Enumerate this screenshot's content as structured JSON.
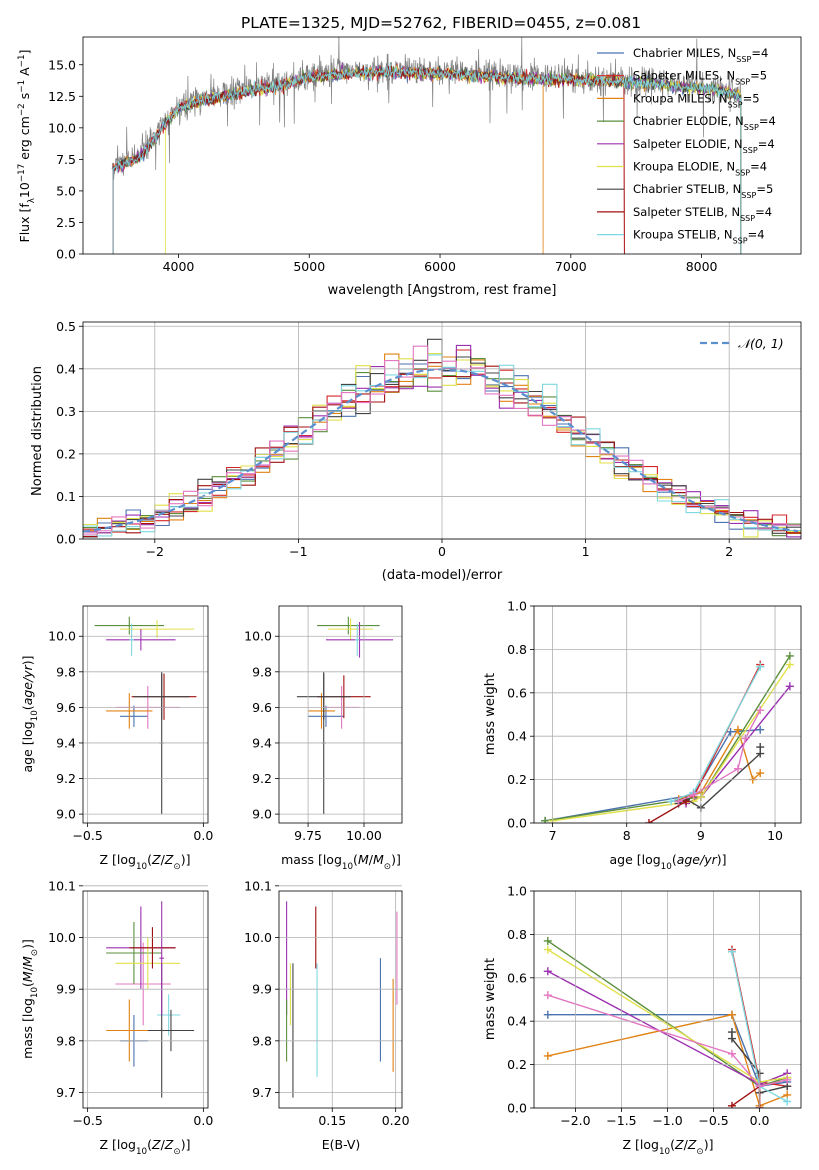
{
  "figure_title": "PLATE=1325, MJD=52762, FIBERID=0455, z=0.081",
  "legend_models": [
    {
      "label": "Chabrier MILES, N",
      "sub": "SSP",
      "suffix": "=4",
      "color": "#4c72b0"
    },
    {
      "label": "Salpeter MILES, N",
      "sub": "SSP",
      "suffix": "=5",
      "color": "#d62728"
    },
    {
      "label": "Kroupa MILES, N",
      "sub": "SSP",
      "suffix": "=5",
      "color": "#e08214"
    },
    {
      "label": "Chabrier ELODIE, N",
      "sub": "SSP",
      "suffix": "=4",
      "color": "#5a8f3c"
    },
    {
      "label": "Salpeter ELODIE, N",
      "sub": "SSP",
      "suffix": "=4",
      "color": "#9b30b0"
    },
    {
      "label": "Kroupa ELODIE, N",
      "sub": "SSP",
      "suffix": "=4",
      "color": "#e0e04a"
    },
    {
      "label": "Chabrier STELIB, N",
      "sub": "SSP",
      "suffix": "=5",
      "color": "#444444"
    },
    {
      "label": "Salpeter STELIB, N",
      "sub": "SSP",
      "suffix": "=4",
      "color": "#a01010"
    },
    {
      "label": "Kroupa STELIB, N",
      "sub": "SSP",
      "suffix": "=4",
      "color": "#7fd8e0"
    }
  ],
  "chart_data": [
    {
      "id": "spectrum",
      "type": "line",
      "title": "PLATE=1325, MJD=52762, FIBERID=0455, z=0.081",
      "xlabel": "wavelength [Angstrom, rest frame]",
      "ylabel_parts": [
        "Flux [f",
        "λ",
        "10",
        "−17",
        " erg cm",
        "−2",
        " s",
        "−1",
        " A",
        "−1",
        "]"
      ],
      "xlim": [
        3270,
        8760
      ],
      "ylim": [
        0,
        17.2
      ],
      "xticks": [
        4000,
        5000,
        6000,
        7000,
        8000
      ],
      "yticks": [
        0.0,
        2.5,
        5.0,
        7.5,
        10.0,
        12.5,
        15.0
      ],
      "grid": false,
      "data_color": "#808080",
      "model_colors": [
        "#4c72b0",
        "#d62728",
        "#e08214",
        "#5a8f3c",
        "#9b30b0",
        "#e0e04a",
        "#444444",
        "#a01010",
        "#7fd8e0"
      ],
      "continuum": {
        "x": [
          3500,
          3700,
          3900,
          4000,
          4200,
          4500,
          4800,
          5000,
          5300,
          5600,
          6000,
          6300,
          6600,
          7000,
          7300,
          7600,
          7900,
          8200,
          8300
        ],
        "y": [
          7.0,
          7.8,
          10.5,
          11.8,
          12.4,
          13.0,
          13.6,
          14.2,
          14.5,
          14.6,
          14.5,
          14.3,
          14.1,
          14.0,
          13.9,
          13.7,
          13.4,
          13.1,
          12.7
        ]
      },
      "model_start_x": [
        3500,
        3500,
        3500,
        3500,
        3500,
        3900,
        3500,
        3500,
        3500
      ],
      "model_end_x": [
        8300,
        7410,
        8300,
        8300,
        8300,
        8300,
        8300,
        7410,
        8300
      ],
      "drop_to_zero_x": [
        3500,
        3920,
        6790,
        7410
      ]
    },
    {
      "id": "residuals",
      "type": "histogram",
      "xlabel": "(data-model)/error",
      "ylabel": "Normed distribution",
      "xlim": [
        -2.5,
        2.5
      ],
      "ylim": [
        0,
        0.51
      ],
      "xticks": [
        -2,
        -1,
        0,
        1,
        2
      ],
      "yticks": [
        0.0,
        0.1,
        0.2,
        0.3,
        0.4,
        0.5
      ],
      "grid": true,
      "bin_width": 0.1,
      "legend": {
        "label": "𝒩(0, 1)",
        "color": "#5b8fd0",
        "style": "dashed",
        "position": "top-right"
      },
      "series_colors": [
        "#4c72b0",
        "#d62728",
        "#e08214",
        "#5a8f3c",
        "#9b30b0",
        "#e0e04a",
        "#444444",
        "#a01010",
        "#7fd8e0",
        "#e377c2"
      ]
    },
    {
      "id": "age-vs-Z",
      "type": "errorbar",
      "xlabel": "Z [log",
      "ylabel": "age  [log",
      "xlim": [
        -0.52,
        0.02
      ],
      "ylim": [
        8.95,
        10.17
      ],
      "xticks": [
        -0.5,
        0.0
      ],
      "yticks": [
        9.0,
        9.2,
        9.4,
        9.6,
        9.8,
        10.0
      ],
      "points": [
        {
          "x": -0.3,
          "xerr": 0.06,
          "y": 9.55,
          "yerr": 0.06,
          "color": "#4c72b0"
        },
        {
          "x": -0.24,
          "xerr": 0.14,
          "y": 9.6,
          "yerr": 0.12,
          "color": "#e377c2"
        },
        {
          "x": -0.32,
          "xerr": 0.1,
          "y": 9.58,
          "yerr": 0.1,
          "color": "#e08214"
        },
        {
          "x": -0.17,
          "xerr": 0.14,
          "y": 9.66,
          "yerr": 0.13,
          "color": "#a01010"
        },
        {
          "x": -0.18,
          "xerr": 0.12,
          "y": 9.66,
          "yerr": 0.13,
          "color": "#444444"
        },
        {
          "x": -0.32,
          "xerr": 0.15,
          "y": 10.06,
          "yerr": 0.05,
          "color": "#5a8f3c"
        },
        {
          "x": -0.2,
          "xerr": 0.16,
          "y": 10.04,
          "yerr": 0.05,
          "color": "#e0e04a"
        },
        {
          "x": -0.27,
          "xerr": 0.15,
          "y": 9.98,
          "yerr": 0.06,
          "color": "#9b30b0"
        },
        {
          "x": -0.18,
          "xerr": 0.01,
          "y": 9.4,
          "yerr": 0.4,
          "color": "#444444"
        },
        {
          "x": -0.31,
          "xerr": 0.01,
          "y": 9.98,
          "yerr": 0.09,
          "color": "#7fd8e0"
        }
      ]
    },
    {
      "id": "age-vs-mass",
      "type": "errorbar",
      "xlabel": "mass [log",
      "ylabel": "",
      "xlim": [
        9.62,
        10.17
      ],
      "ylim": [
        8.95,
        10.17
      ],
      "xticks": [
        9.75,
        10.0
      ],
      "points": [
        {
          "x": 9.83,
          "xerr": 0.08,
          "y": 9.55,
          "yerr": 0.06,
          "color": "#4c72b0"
        },
        {
          "x": 9.9,
          "xerr": 0.08,
          "y": 9.6,
          "yerr": 0.12,
          "color": "#e377c2"
        },
        {
          "x": 9.81,
          "xerr": 0.06,
          "y": 9.58,
          "yerr": 0.1,
          "color": "#e08214"
        },
        {
          "x": 9.91,
          "xerr": 0.12,
          "y": 9.66,
          "yerr": 0.12,
          "color": "#a01010"
        },
        {
          "x": 9.82,
          "xerr": 0.12,
          "y": 9.66,
          "yerr": 0.13,
          "color": "#444444"
        },
        {
          "x": 9.93,
          "xerr": 0.14,
          "y": 10.06,
          "yerr": 0.05,
          "color": "#5a8f3c"
        },
        {
          "x": 9.94,
          "xerr": 0.1,
          "y": 10.04,
          "yerr": 0.06,
          "color": "#e0e04a"
        },
        {
          "x": 9.98,
          "xerr": 0.15,
          "y": 9.98,
          "yerr": 0.1,
          "color": "#9b30b0"
        },
        {
          "x": 9.82,
          "xerr": 0.01,
          "y": 9.4,
          "yerr": 0.4,
          "color": "#444444"
        },
        {
          "x": 9.97,
          "xerr": 0.01,
          "y": 9.98,
          "yerr": 0.09,
          "color": "#7fd8e0"
        }
      ]
    },
    {
      "id": "weight-vs-age",
      "type": "line",
      "xlabel": "age  [log",
      "ylabel": "mass weight",
      "xlim": [
        6.75,
        10.35
      ],
      "ylim": [
        0,
        1.0
      ],
      "xticks": [
        7,
        8,
        9,
        10
      ],
      "yticks": [
        0.0,
        0.2,
        0.4,
        0.6,
        0.8,
        1.0
      ],
      "grid": true,
      "series": [
        {
          "color": "#4c72b0",
          "x": [
            6.9,
            8.9,
            9.4,
            9.8
          ],
          "y": [
            0.01,
            0.13,
            0.42,
            0.43
          ]
        },
        {
          "color": "#d62728",
          "x": [
            8.9,
            9.8
          ],
          "y": [
            0.12,
            0.73
          ]
        },
        {
          "color": "#e08214",
          "x": [
            8.7,
            9.0,
            9.5,
            9.7,
            9.8
          ],
          "y": [
            0.11,
            0.14,
            0.43,
            0.2,
            0.23
          ]
        },
        {
          "color": "#5a8f3c",
          "x": [
            6.9,
            8.8,
            9.0,
            10.2
          ],
          "y": [
            0.01,
            0.11,
            0.12,
            0.77
          ]
        },
        {
          "color": "#9b30b0",
          "x": [
            8.8,
            9.0,
            10.2
          ],
          "y": [
            0.09,
            0.12,
            0.63
          ]
        },
        {
          "color": "#e0e04a",
          "x": [
            7.0,
            8.9,
            9.0,
            10.2
          ],
          "y": [
            0.01,
            0.1,
            0.12,
            0.73
          ]
        },
        {
          "color": "#444444",
          "x": [
            8.7,
            8.8,
            9.0,
            9.8,
            9.8
          ],
          "y": [
            0.09,
            0.11,
            0.07,
            0.32,
            0.35
          ]
        },
        {
          "color": "#a01010",
          "x": [
            8.3,
            8.8
          ],
          "y": [
            0.0,
            0.1
          ]
        },
        {
          "color": "#7fd8e0",
          "x": [
            8.6,
            8.9,
            9.8
          ],
          "y": [
            0.1,
            0.14,
            0.72
          ]
        },
        {
          "color": "#e377c2",
          "x": [
            8.7,
            8.9,
            9.5,
            9.6,
            9.8
          ],
          "y": [
            0.1,
            0.13,
            0.25,
            0.39,
            0.52
          ]
        }
      ]
    },
    {
      "id": "mass-vs-Z",
      "type": "errorbar",
      "xlabel": "Z [log",
      "ylabel": "mass [log",
      "xlim": [
        -0.52,
        0.02
      ],
      "ylim": [
        9.67,
        10.09
      ],
      "xticks": [
        -0.5,
        0.0
      ],
      "yticks": [
        9.7,
        9.8,
        9.9,
        10.0,
        10.1
      ],
      "points": [
        {
          "x": -0.3,
          "xerr": 0.06,
          "y": 9.8,
          "yerr": 0.05,
          "color": "#4c72b0"
        },
        {
          "x": -0.32,
          "xerr": 0.1,
          "y": 9.82,
          "yerr": 0.06,
          "color": "#e08214"
        },
        {
          "x": -0.26,
          "xerr": 0.12,
          "y": 9.91,
          "yerr": 0.08,
          "color": "#e377c2"
        },
        {
          "x": -0.27,
          "xerr": 0.15,
          "y": 9.98,
          "yerr": 0.08,
          "color": "#9b30b0"
        },
        {
          "x": -0.3,
          "xerr": 0.12,
          "y": 9.97,
          "yerr": 0.06,
          "color": "#5a8f3c"
        },
        {
          "x": -0.24,
          "xerr": 0.14,
          "y": 9.95,
          "yerr": 0.05,
          "color": "#e0e04a"
        },
        {
          "x": -0.22,
          "xerr": 0.1,
          "y": 9.98,
          "yerr": 0.04,
          "color": "#a01010"
        },
        {
          "x": -0.15,
          "xerr": 0.05,
          "y": 9.85,
          "yerr": 0.04,
          "color": "#7fd8e0"
        },
        {
          "x": -0.14,
          "xerr": 0.1,
          "y": 9.82,
          "yerr": 0.04,
          "color": "#444444"
        },
        {
          "x": -0.18,
          "xerr": 0.01,
          "y": 9.82,
          "yerr": 0.13,
          "color": "#444444"
        },
        {
          "x": -0.18,
          "xerr": 0.01,
          "y": 9.96,
          "yerr": 0.11,
          "color": "#9b30b0"
        }
      ]
    },
    {
      "id": "mass-vs-ebv",
      "type": "errorbar",
      "xlabel": "E(B-V)",
      "ylabel": "",
      "xlim": [
        0.108,
        0.205
      ],
      "ylim": [
        9.67,
        10.09
      ],
      "xticks": [
        0.15,
        0.2
      ],
      "points": [
        {
          "x": 0.114,
          "xerr": 0.0,
          "y": 9.96,
          "yerr": 0.11,
          "color": "#9b30b0"
        },
        {
          "x": 0.117,
          "xerr": 0.0,
          "y": 9.89,
          "yerr": 0.06,
          "color": "#e0e04a"
        },
        {
          "x": 0.114,
          "xerr": 0.0,
          "y": 9.82,
          "yerr": 0.06,
          "color": "#5a8f3c"
        },
        {
          "x": 0.119,
          "xerr": 0.0,
          "y": 9.82,
          "yerr": 0.13,
          "color": "#444444"
        },
        {
          "x": 0.137,
          "xerr": 0.0,
          "y": 10.0,
          "yerr": 0.06,
          "color": "#a01010"
        },
        {
          "x": 0.138,
          "xerr": 0.0,
          "y": 9.84,
          "yerr": 0.11,
          "color": "#7fd8e0"
        },
        {
          "x": 0.188,
          "xerr": 0.0,
          "y": 9.86,
          "yerr": 0.1,
          "color": "#4c72b0"
        },
        {
          "x": 0.198,
          "xerr": 0.0,
          "y": 9.83,
          "yerr": 0.09,
          "color": "#e08214"
        },
        {
          "x": 0.201,
          "xerr": 0.0,
          "y": 9.96,
          "yerr": 0.09,
          "color": "#e377c2"
        }
      ]
    },
    {
      "id": "weight-vs-Z",
      "type": "line",
      "xlabel": "Z [log",
      "ylabel": "mass weight",
      "xlim": [
        -2.45,
        0.45
      ],
      "ylim": [
        0,
        1.0
      ],
      "xticks": [
        -2.0,
        -1.5,
        -1.0,
        -0.5,
        0.0
      ],
      "yticks": [
        0.0,
        0.2,
        0.4,
        0.6,
        0.8,
        1.0
      ],
      "grid": true,
      "series": [
        {
          "color": "#4c72b0",
          "x": [
            -2.3,
            -0.3,
            0.0,
            0.3
          ],
          "y": [
            0.43,
            0.43,
            0.1,
            0.12
          ]
        },
        {
          "color": "#d62728",
          "x": [
            -0.3,
            0.0,
            0.3
          ],
          "y": [
            0.73,
            0.12,
            0.1
          ]
        },
        {
          "color": "#e08214",
          "x": [
            -2.3,
            -0.3,
            0.0,
            0.3
          ],
          "y": [
            0.24,
            0.43,
            0.01,
            0.06
          ]
        },
        {
          "color": "#5a8f3c",
          "x": [
            -2.3,
            0.0,
            0.3
          ],
          "y": [
            0.77,
            0.1,
            0.14
          ]
        },
        {
          "color": "#9b30b0",
          "x": [
            -2.3,
            0.0,
            0.3
          ],
          "y": [
            0.63,
            0.11,
            0.16
          ]
        },
        {
          "color": "#e0e04a",
          "x": [
            -2.3,
            0.0,
            0.3
          ],
          "y": [
            0.73,
            0.12,
            0.14
          ]
        },
        {
          "color": "#444444",
          "x": [
            -0.3,
            -0.3,
            0.0,
            0.0,
            0.3
          ],
          "y": [
            0.35,
            0.32,
            0.16,
            0.07,
            0.1
          ]
        },
        {
          "color": "#a01010",
          "x": [
            -0.3,
            0.0,
            0.0
          ],
          "y": [
            0.01,
            0.1,
            0.0
          ]
        },
        {
          "color": "#7fd8e0",
          "x": [
            -0.3,
            0.0,
            0.3
          ],
          "y": [
            0.72,
            0.1,
            0.03
          ]
        },
        {
          "color": "#e377c2",
          "x": [
            -2.3,
            -0.3,
            0.0,
            0.3
          ],
          "y": [
            0.52,
            0.25,
            0.1,
            0.13
          ]
        }
      ]
    }
  ]
}
